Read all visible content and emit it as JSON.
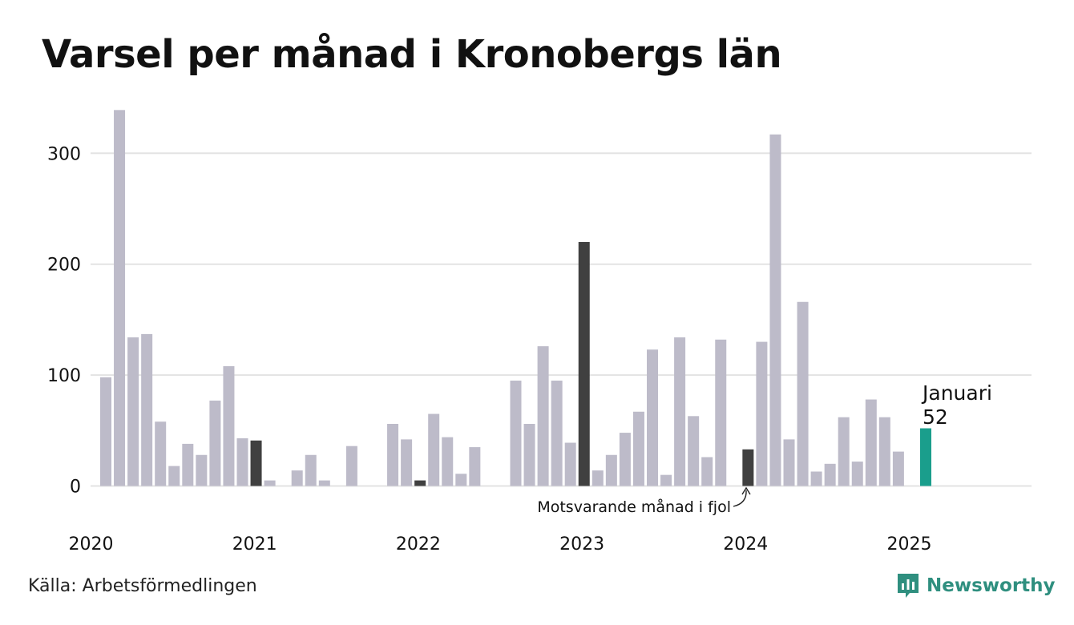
{
  "title": "Varsel per månad i Kronobergs län",
  "source": "Källa: Arbetsförmedlingen",
  "brand": {
    "name": "Newsworthy",
    "icon": "newsworthy-logo-icon"
  },
  "colors": {
    "bar": "#bdbbc9",
    "previous_year_month": "#404040",
    "current": "#1a9e8c",
    "grid": "#e3e3e3",
    "text": "#111111",
    "brand": "#2f8f7f"
  },
  "annotations": {
    "previous_year": "Motsvarande månad i fjol",
    "current_month": "Januari",
    "current_value": "52"
  },
  "chart_data": {
    "type": "bar",
    "title": "Varsel per månad i Kronobergs län",
    "xlabel": "",
    "ylabel": "",
    "ylim": [
      0,
      340
    ],
    "yticks": [
      0,
      100,
      200,
      300
    ],
    "x_tick_labels": [
      "2020",
      "2021",
      "2022",
      "2023",
      "2024",
      "2025"
    ],
    "grid": true,
    "start": "2020-01",
    "categories": [
      "2020-01",
      "2020-02",
      "2020-03",
      "2020-04",
      "2020-05",
      "2020-06",
      "2020-07",
      "2020-08",
      "2020-09",
      "2020-10",
      "2020-11",
      "2020-12",
      "2021-01",
      "2021-02",
      "2021-03",
      "2021-04",
      "2021-05",
      "2021-06",
      "2021-07",
      "2021-08",
      "2021-09",
      "2021-10",
      "2021-11",
      "2021-12",
      "2022-01",
      "2022-02",
      "2022-03",
      "2022-04",
      "2022-05",
      "2022-06",
      "2022-07",
      "2022-08",
      "2022-09",
      "2022-10",
      "2022-11",
      "2022-12",
      "2023-01",
      "2023-02",
      "2023-03",
      "2023-04",
      "2023-05",
      "2023-06",
      "2023-07",
      "2023-08",
      "2023-09",
      "2023-10",
      "2023-11",
      "2023-12",
      "2024-01",
      "2024-02",
      "2024-03",
      "2024-04",
      "2024-05",
      "2024-06",
      "2024-07",
      "2024-08",
      "2024-09",
      "2024-10",
      "2024-11",
      "2024-12",
      "2025-01"
    ],
    "values": [
      98,
      339,
      134,
      137,
      58,
      18,
      38,
      28,
      77,
      108,
      43,
      41,
      5,
      0,
      14,
      28,
      5,
      0,
      36,
      0,
      0,
      56,
      42,
      5,
      65,
      44,
      11,
      35,
      0,
      0,
      95,
      56,
      126,
      95,
      39,
      220,
      14,
      28,
      48,
      67,
      123,
      10,
      134,
      63,
      26,
      132,
      0,
      33,
      130,
      317,
      42,
      166,
      13,
      20,
      62,
      22,
      78,
      62,
      31,
      0,
      52
    ],
    "highlight_previous_year": [
      "2020-12",
      "2021-12",
      "2022-12",
      "2023-12"
    ],
    "highlight_current": "2025-01"
  }
}
